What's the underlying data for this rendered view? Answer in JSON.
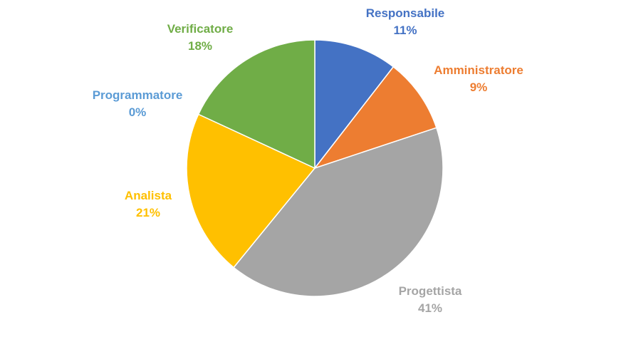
{
  "chart_data": {
    "type": "pie",
    "title": "",
    "start_angle_deg": 0,
    "direction": "clockwise",
    "slices": [
      {
        "label": "Responsabile",
        "percent_label": "11%",
        "value": 10.5,
        "color": "#4472C4"
      },
      {
        "label": "Amministratore",
        "percent_label": "9%",
        "value": 9.4,
        "color": "#ED7D31"
      },
      {
        "label": "Progettista",
        "percent_label": "41%",
        "value": 41.0,
        "color": "#A5A5A5"
      },
      {
        "label": "Analista",
        "percent_label": "21%",
        "value": 21.0,
        "color": "#FFC000"
      },
      {
        "label": "Programmatore",
        "percent_label": "0%",
        "value": 0.0,
        "color": "#5B9BD5"
      },
      {
        "label": "Verificatore",
        "percent_label": "18%",
        "value": 18.1,
        "color": "#70AD47"
      }
    ],
    "legend": "none",
    "data_labels": "outside"
  }
}
